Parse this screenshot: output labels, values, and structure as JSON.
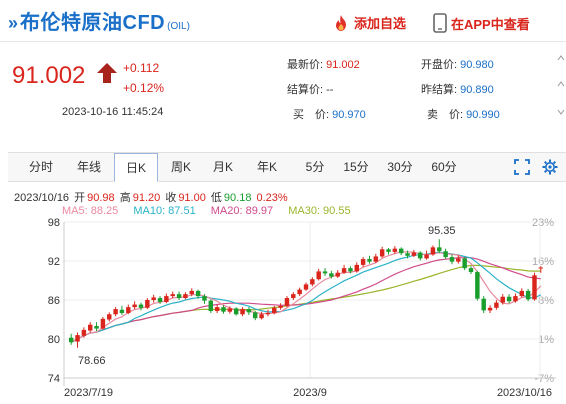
{
  "header": {
    "title_prefix": "»",
    "title": "布伦特原油CFD",
    "title_sub": "(OIL)",
    "fav_label": "添加自选",
    "app_label": "在APP中查看"
  },
  "quote": {
    "price": "91.002",
    "change": "+0.112",
    "change_pct": "+0.12%",
    "time": "2023-10-16 11:45:24",
    "cells": [
      {
        "label": "最新价: ",
        "value": "91.002",
        "color": "red"
      },
      {
        "label": "开盘价: ",
        "value": "90.980",
        "color": "blue"
      },
      {
        "label": "结算价: ",
        "value": "--",
        "color": "plain"
      },
      {
        "label": "昨结算: ",
        "value": "90.890",
        "color": "blue"
      },
      {
        "label": "买　价: ",
        "value": "90.970",
        "color": "blue"
      },
      {
        "label": "卖　价: ",
        "value": "90.990",
        "color": "blue"
      }
    ]
  },
  "tabs": [
    {
      "label": "分时",
      "active": false
    },
    {
      "label": "年线",
      "active": false
    },
    {
      "label": "日K",
      "active": true
    },
    {
      "label": "周K",
      "active": false
    },
    {
      "label": "月K",
      "active": false
    },
    {
      "label": "年K",
      "active": false
    },
    {
      "label": "5分",
      "active": false
    },
    {
      "label": "15分",
      "active": false
    },
    {
      "label": "30分",
      "active": false
    },
    {
      "label": "60分",
      "active": false
    }
  ],
  "ohlc_line": {
    "date": "2023/10/16",
    "open_label": "开",
    "open": "90.98",
    "high_label": "高",
    "high": "91.20",
    "close_label": "收",
    "close": "91.00",
    "low_label": "低",
    "low": "90.18",
    "pct": "0.23%"
  },
  "ma_line": {
    "ma5": "MA5: 88.25",
    "ma10": "MA10: 87.51",
    "ma20": "MA20: 89.97",
    "ma30": "MA30: 90.55"
  },
  "colors": {
    "up": "#d9251c",
    "down": "#1a9e2e",
    "ma5": "#e88aa0",
    "ma10": "#2bb3c8",
    "ma20": "#d04a8a",
    "ma30": "#9ab62c",
    "accent": "#1a6fc8"
  },
  "chart_data": {
    "type": "candlestick",
    "y_ticks": [
      "98",
      "92",
      "86",
      "80",
      "74"
    ],
    "ylim": [
      74,
      98
    ],
    "pct_ticks": [
      "23%",
      "16%",
      "8%",
      "1%",
      "-7%"
    ],
    "x_labels": [
      "2023/7/19",
      "2023/9",
      "2023/10/16"
    ],
    "annotations": {
      "high": "95.35",
      "low": "78.66"
    },
    "candles": [
      [
        80.2,
        79.5,
        80.8,
        79.1
      ],
      [
        79.6,
        80.6,
        81.0,
        78.66
      ],
      [
        80.5,
        81.4,
        81.8,
        80.2
      ],
      [
        81.3,
        82.2,
        82.6,
        81.0
      ],
      [
        82.0,
        81.6,
        82.6,
        81.2
      ],
      [
        81.6,
        83.1,
        83.4,
        81.4
      ],
      [
        83.0,
        83.8,
        84.1,
        82.7
      ],
      [
        83.8,
        84.6,
        84.9,
        83.5
      ],
      [
        84.5,
        84.0,
        85.1,
        83.7
      ],
      [
        84.0,
        84.9,
        85.3,
        83.8
      ],
      [
        84.9,
        85.3,
        85.8,
        84.6
      ],
      [
        85.3,
        84.8,
        85.6,
        84.4
      ],
      [
        84.8,
        86.0,
        86.3,
        84.6
      ],
      [
        86.0,
        86.4,
        86.8,
        85.6
      ],
      [
        86.3,
        85.7,
        86.6,
        85.4
      ],
      [
        85.7,
        86.6,
        87.0,
        85.5
      ],
      [
        86.6,
        86.9,
        87.3,
        86.3
      ],
      [
        86.9,
        86.3,
        87.3,
        86.0
      ],
      [
        86.3,
        86.9,
        87.2,
        86.1
      ],
      [
        86.9,
        87.4,
        87.8,
        86.6
      ],
      [
        87.4,
        86.6,
        87.6,
        86.2
      ],
      [
        86.6,
        85.9,
        86.9,
        85.4
      ],
      [
        85.9,
        84.3,
        86.1,
        84.0
      ],
      [
        84.3,
        84.9,
        85.3,
        84.0
      ],
      [
        84.9,
        84.2,
        85.2,
        83.9
      ],
      [
        84.2,
        84.7,
        85.0,
        83.9
      ],
      [
        84.7,
        83.8,
        84.9,
        83.6
      ],
      [
        83.8,
        84.6,
        84.9,
        83.5
      ],
      [
        84.6,
        84.1,
        84.9,
        83.7
      ],
      [
        84.1,
        83.2,
        84.3,
        82.9
      ],
      [
        83.2,
        83.8,
        84.2,
        83.0
      ],
      [
        83.8,
        84.0,
        84.5,
        83.5
      ],
      [
        84.0,
        84.8,
        85.1,
        83.8
      ],
      [
        84.8,
        85.1,
        85.5,
        84.5
      ],
      [
        85.1,
        86.3,
        86.6,
        84.9
      ],
      [
        86.3,
        86.9,
        87.2,
        86.0
      ],
      [
        86.9,
        87.6,
        87.9,
        86.6
      ],
      [
        87.6,
        88.4,
        88.7,
        87.4
      ],
      [
        88.4,
        89.2,
        89.5,
        88.1
      ],
      [
        89.2,
        90.4,
        90.8,
        89.0
      ],
      [
        90.4,
        90.1,
        90.9,
        89.7
      ],
      [
        90.1,
        89.6,
        90.5,
        89.3
      ],
      [
        89.6,
        90.2,
        90.6,
        89.4
      ],
      [
        90.2,
        90.9,
        91.4,
        90.0
      ],
      [
        90.9,
        90.4,
        91.2,
        90.1
      ],
      [
        90.4,
        91.4,
        91.8,
        90.2
      ],
      [
        91.4,
        92.3,
        92.6,
        91.1
      ],
      [
        92.3,
        91.9,
        92.8,
        91.6
      ],
      [
        91.9,
        92.7,
        93.1,
        91.7
      ],
      [
        92.7,
        93.8,
        94.2,
        92.5
      ],
      [
        93.8,
        93.4,
        94.0,
        93.0
      ],
      [
        93.4,
        93.9,
        94.3,
        93.1
      ],
      [
        93.9,
        93.2,
        94.1,
        92.9
      ],
      [
        93.2,
        92.8,
        93.6,
        92.4
      ],
      [
        92.8,
        93.3,
        93.7,
        92.6
      ],
      [
        93.3,
        92.4,
        93.5,
        92.1
      ],
      [
        92.4,
        93.0,
        93.6,
        92.2
      ],
      [
        93.0,
        94.1,
        94.4,
        92.8
      ],
      [
        94.1,
        93.5,
        95.35,
        93.2
      ],
      [
        93.5,
        92.6,
        93.9,
        92.3
      ],
      [
        92.6,
        91.9,
        93.0,
        91.5
      ],
      [
        91.9,
        92.4,
        92.9,
        91.6
      ],
      [
        92.4,
        90.9,
        92.6,
        90.6
      ],
      [
        90.9,
        90.3,
        91.2,
        90.0
      ],
      [
        90.3,
        86.2,
        90.5,
        85.9
      ],
      [
        86.2,
        84.4,
        86.6,
        84.0
      ],
      [
        84.4,
        84.8,
        85.2,
        84.0
      ],
      [
        84.8,
        85.6,
        86.0,
        84.5
      ],
      [
        85.6,
        86.5,
        86.9,
        85.3
      ],
      [
        86.5,
        85.8,
        86.9,
        85.5
      ],
      [
        85.8,
        86.6,
        87.0,
        85.6
      ],
      [
        86.6,
        87.4,
        87.8,
        86.4
      ],
      [
        87.4,
        86.1,
        87.7,
        85.8
      ],
      [
        86.1,
        89.8,
        90.2,
        85.9
      ],
      [
        90.98,
        91.0,
        91.2,
        90.18
      ]
    ]
  }
}
